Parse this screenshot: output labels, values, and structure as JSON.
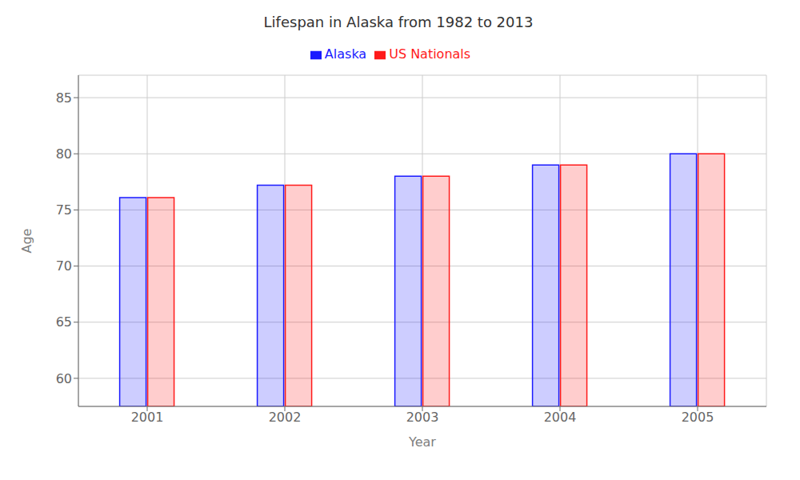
{
  "chart_data": {
    "type": "bar",
    "title": "Lifespan in Alaska from 1982 to 2013",
    "x_label": "Year",
    "y_label": "Age",
    "categories": [
      "2001",
      "2002",
      "2003",
      "2004",
      "2005"
    ],
    "series": [
      {
        "name": "Alaska",
        "color": "#1a1aff",
        "values": [
          76.1,
          77.2,
          78.0,
          79.0,
          80.0
        ]
      },
      {
        "name": "US Nationals",
        "color": "#ff1a1a",
        "values": [
          76.1,
          77.2,
          78.0,
          79.0,
          80.0
        ]
      }
    ],
    "ylim": [
      57.5,
      87
    ],
    "yticks": [
      60,
      65,
      70,
      75,
      80,
      85
    ],
    "grid": true,
    "legend": "top"
  }
}
